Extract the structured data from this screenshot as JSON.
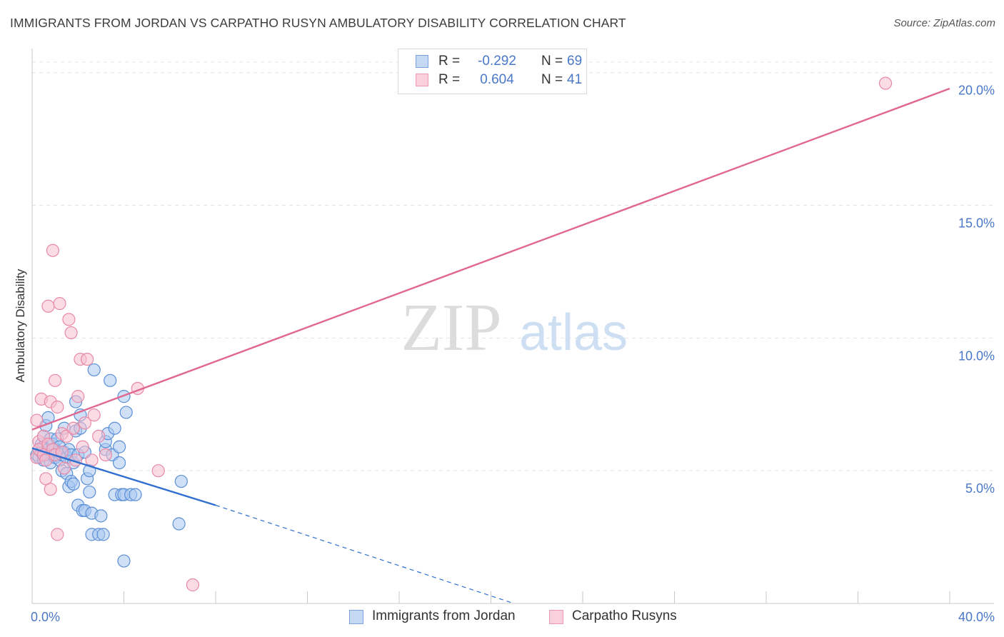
{
  "title": "IMMIGRANTS FROM JORDAN VS CARPATHO RUSYN AMBULATORY DISABILITY CORRELATION CHART",
  "source": "Source: ZipAtlas.com",
  "watermark": {
    "zip": "ZIP",
    "atlas": "atlas"
  },
  "colors": {
    "blue_fill": "#a9c8f0",
    "blue_stroke": "#5b8fd6",
    "blue_line": "#2f6fd1",
    "pink_fill": "#f7bfd0",
    "pink_stroke": "#e889a6",
    "pink_line": "#e06790",
    "tick_text": "#4a78c8",
    "grid": "#e3e3e3"
  },
  "legend": {
    "rows": [
      {
        "r_label": "R =",
        "r_value": "-0.292",
        "n_label": "N =",
        "n_value": "69"
      },
      {
        "r_label": "R =",
        "r_value": "0.604",
        "n_label": "N =",
        "n_value": "41"
      }
    ]
  },
  "chart_data": {
    "type": "scatter",
    "title": "IMMIGRANTS FROM JORDAN VS CARPATHO RUSYN AMBULATORY DISABILITY CORRELATION CHART",
    "xlabel": "",
    "ylabel": "Ambulatory Disability",
    "xlim": [
      0,
      40
    ],
    "ylim": [
      0,
      20.8
    ],
    "x_tick_labels": [
      {
        "value": 0,
        "label": "0.0%"
      },
      {
        "value": 40,
        "label": "40.0%"
      }
    ],
    "x_minor_ticks": [
      4,
      8,
      12,
      16,
      20,
      24,
      28,
      32,
      36
    ],
    "y_ticks": [
      {
        "value": 5,
        "label": "5.0%"
      },
      {
        "value": 10,
        "label": "10.0%"
      },
      {
        "value": 15,
        "label": "15.0%"
      },
      {
        "value": 20,
        "label": "20.0%"
      }
    ],
    "series": [
      {
        "name": "Immigrants from Jordan",
        "color": "blue",
        "trend": {
          "x0": 0,
          "y0": 5.85,
          "x1": 8,
          "y1": 3.7,
          "dash_to_x": 21,
          "dash_to_y": 0
        },
        "points": [
          [
            0.2,
            5.6
          ],
          [
            0.3,
            5.8
          ],
          [
            0.3,
            5.5
          ],
          [
            0.4,
            6.0
          ],
          [
            0.4,
            5.7
          ],
          [
            0.5,
            5.4
          ],
          [
            0.5,
            6.3
          ],
          [
            0.5,
            5.9
          ],
          [
            0.6,
            6.7
          ],
          [
            0.6,
            5.6
          ],
          [
            0.7,
            7.0
          ],
          [
            0.7,
            5.8
          ],
          [
            0.8,
            5.3
          ],
          [
            0.8,
            6.2
          ],
          [
            0.9,
            5.6
          ],
          [
            0.9,
            6.0
          ],
          [
            1.0,
            5.8
          ],
          [
            1.0,
            5.5
          ],
          [
            1.1,
            6.2
          ],
          [
            1.1,
            5.7
          ],
          [
            1.2,
            5.4
          ],
          [
            1.2,
            5.9
          ],
          [
            1.3,
            5.6
          ],
          [
            1.3,
            5.0
          ],
          [
            1.4,
            5.7
          ],
          [
            1.4,
            6.6
          ],
          [
            1.5,
            4.9
          ],
          [
            1.5,
            5.5
          ],
          [
            1.6,
            5.8
          ],
          [
            1.6,
            4.4
          ],
          [
            1.7,
            4.6
          ],
          [
            1.7,
            5.6
          ],
          [
            1.8,
            4.5
          ],
          [
            1.8,
            5.3
          ],
          [
            1.9,
            6.5
          ],
          [
            1.9,
            7.6
          ],
          [
            2.0,
            3.7
          ],
          [
            2.0,
            5.6
          ],
          [
            2.1,
            7.1
          ],
          [
            2.1,
            6.6
          ],
          [
            2.2,
            3.5
          ],
          [
            2.3,
            5.7
          ],
          [
            2.3,
            3.5
          ],
          [
            2.4,
            4.7
          ],
          [
            2.5,
            4.2
          ],
          [
            2.5,
            5.0
          ],
          [
            2.6,
            3.4
          ],
          [
            2.6,
            2.6
          ],
          [
            2.7,
            8.8
          ],
          [
            2.9,
            2.6
          ],
          [
            3.0,
            3.3
          ],
          [
            3.1,
            2.6
          ],
          [
            3.2,
            5.8
          ],
          [
            3.2,
            6.1
          ],
          [
            3.3,
            6.4
          ],
          [
            3.4,
            8.4
          ],
          [
            3.5,
            5.6
          ],
          [
            3.6,
            6.6
          ],
          [
            3.6,
            4.1
          ],
          [
            3.8,
            5.3
          ],
          [
            3.8,
            5.9
          ],
          [
            3.9,
            4.1
          ],
          [
            4.0,
            4.1
          ],
          [
            4.0,
            1.6
          ],
          [
            4.0,
            7.8
          ],
          [
            4.1,
            7.2
          ],
          [
            4.3,
            4.1
          ],
          [
            4.5,
            4.1
          ],
          [
            6.4,
            3.0
          ],
          [
            6.5,
            4.6
          ]
        ]
      },
      {
        "name": "Carpatho Rusyns",
        "color": "pink",
        "trend": {
          "x0": 0,
          "y0": 6.55,
          "x1": 40,
          "y1": 19.4
        },
        "points": [
          [
            0.2,
            6.9
          ],
          [
            0.2,
            5.5
          ],
          [
            0.3,
            6.1
          ],
          [
            0.3,
            5.8
          ],
          [
            0.4,
            7.7
          ],
          [
            0.5,
            5.6
          ],
          [
            0.5,
            6.3
          ],
          [
            0.6,
            5.4
          ],
          [
            0.6,
            4.7
          ],
          [
            0.7,
            6.0
          ],
          [
            0.7,
            11.2
          ],
          [
            0.8,
            7.6
          ],
          [
            0.8,
            4.3
          ],
          [
            0.9,
            13.3
          ],
          [
            0.9,
            5.8
          ],
          [
            1.0,
            8.4
          ],
          [
            1.0,
            5.6
          ],
          [
            1.1,
            7.4
          ],
          [
            1.1,
            2.6
          ],
          [
            1.2,
            11.3
          ],
          [
            1.3,
            6.4
          ],
          [
            1.3,
            5.7
          ],
          [
            1.4,
            5.1
          ],
          [
            1.5,
            6.3
          ],
          [
            1.6,
            10.7
          ],
          [
            1.7,
            10.2
          ],
          [
            1.8,
            6.6
          ],
          [
            1.9,
            5.4
          ],
          [
            2.0,
            7.8
          ],
          [
            2.1,
            9.2
          ],
          [
            2.2,
            5.9
          ],
          [
            2.3,
            6.8
          ],
          [
            2.4,
            9.2
          ],
          [
            2.6,
            5.4
          ],
          [
            2.7,
            7.1
          ],
          [
            2.9,
            6.3
          ],
          [
            3.2,
            5.6
          ],
          [
            4.6,
            8.1
          ],
          [
            5.5,
            5.0
          ],
          [
            7.0,
            0.7
          ],
          [
            37.2,
            19.6
          ]
        ]
      }
    ]
  },
  "bottom_legend": [
    {
      "label": "Immigrants from Jordan"
    },
    {
      "label": "Carpatho Rusyns"
    }
  ]
}
